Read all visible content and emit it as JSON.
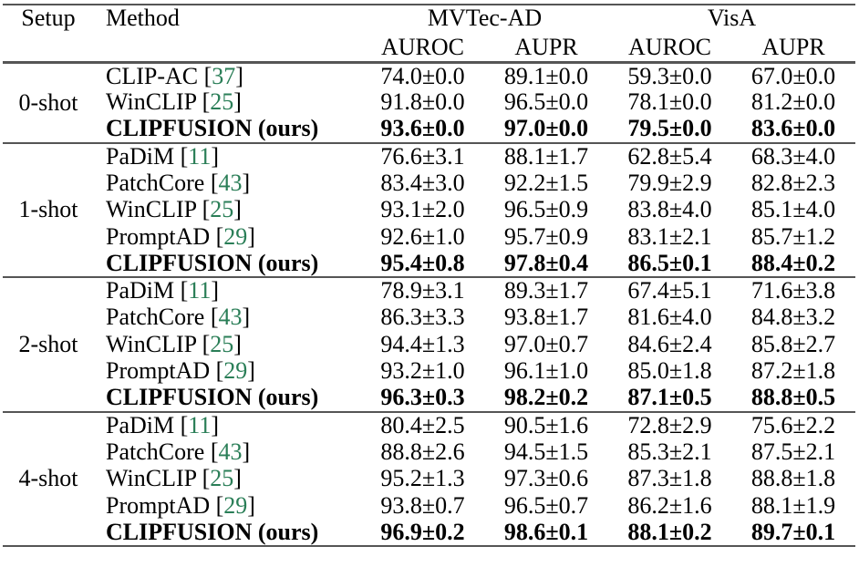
{
  "page": {
    "background": "#ffffff"
  },
  "table": {
    "headers": {
      "setup": "Setup",
      "method": "Method",
      "dataset_groups": [
        "MVTec-AD",
        "VisA"
      ],
      "metrics": [
        "AUROC",
        "AUPR",
        "AUROC",
        "AUPR"
      ]
    },
    "symbols": {
      "bracket_open": "[",
      "bracket_close": "]",
      "plus_minus": "±"
    },
    "colors": {
      "citation": "#2a7e57",
      "rule": "#555555",
      "text": "#000000"
    },
    "groups": [
      {
        "setup": "0-shot",
        "rows": [
          {
            "method": "CLIP-AC",
            "cite": "37",
            "bold": false,
            "values": [
              "74.0±0.0",
              "89.1±0.0",
              "59.3±0.0",
              "67.0±0.0"
            ]
          },
          {
            "method": "WinCLIP",
            "cite": "25",
            "bold": false,
            "values": [
              "91.8±0.0",
              "96.5±0.0",
              "78.1±0.0",
              "81.2±0.0"
            ]
          },
          {
            "method": "CLIPFUSION (ours)",
            "cite": null,
            "bold": true,
            "values": [
              "93.6±0.0",
              "97.0±0.0",
              "79.5±0.0",
              "83.6±0.0"
            ]
          }
        ]
      },
      {
        "setup": "1-shot",
        "rows": [
          {
            "method": "PaDiM",
            "cite": "11",
            "bold": false,
            "values": [
              "76.6±3.1",
              "88.1±1.7",
              "62.8±5.4",
              "68.3±4.0"
            ]
          },
          {
            "method": "PatchCore",
            "cite": "43",
            "bold": false,
            "values": [
              "83.4±3.0",
              "92.2±1.5",
              "79.9±2.9",
              "82.8±2.3"
            ]
          },
          {
            "method": "WinCLIP",
            "cite": "25",
            "bold": false,
            "values": [
              "93.1±2.0",
              "96.5±0.9",
              "83.8±4.0",
              "85.1±4.0"
            ]
          },
          {
            "method": "PromptAD",
            "cite": "29",
            "bold": false,
            "values": [
              "92.6±1.0",
              "95.7±0.9",
              "83.1±2.1",
              "85.7±1.2"
            ]
          },
          {
            "method": "CLIPFUSION (ours)",
            "cite": null,
            "bold": true,
            "values": [
              "95.4±0.8",
              "97.8±0.4",
              "86.5±0.1",
              "88.4±0.2"
            ]
          }
        ]
      },
      {
        "setup": "2-shot",
        "rows": [
          {
            "method": "PaDiM",
            "cite": "11",
            "bold": false,
            "values": [
              "78.9±3.1",
              "89.3±1.7",
              "67.4±5.1",
              "71.6±3.8"
            ]
          },
          {
            "method": "PatchCore",
            "cite": "43",
            "bold": false,
            "values": [
              "86.3±3.3",
              "93.8±1.7",
              "81.6±4.0",
              "84.8±3.2"
            ]
          },
          {
            "method": "WinCLIP",
            "cite": "25",
            "bold": false,
            "values": [
              "94.4±1.3",
              "97.0±0.7",
              "84.6±2.4",
              "85.8±2.7"
            ]
          },
          {
            "method": "PromptAD",
            "cite": "29",
            "bold": false,
            "values": [
              "93.2±1.0",
              "96.1±1.0",
              "85.0±1.8",
              "87.2±1.8"
            ]
          },
          {
            "method": "CLIPFUSION (ours)",
            "cite": null,
            "bold": true,
            "values": [
              "96.3±0.3",
              "98.2±0.2",
              "87.1±0.5",
              "88.8±0.5"
            ]
          }
        ]
      },
      {
        "setup": "4-shot",
        "rows": [
          {
            "method": "PaDiM",
            "cite": "11",
            "bold": false,
            "values": [
              "80.4±2.5",
              "90.5±1.6",
              "72.8±2.9",
              "75.6±2.2"
            ]
          },
          {
            "method": "PatchCore",
            "cite": "43",
            "bold": false,
            "values": [
              "88.8±2.6",
              "94.5±1.5",
              "85.3±2.1",
              "87.5±2.1"
            ]
          },
          {
            "method": "WinCLIP",
            "cite": "25",
            "bold": false,
            "values": [
              "95.2±1.3",
              "97.3±0.6",
              "87.3±1.8",
              "88.8±1.8"
            ]
          },
          {
            "method": "PromptAD",
            "cite": "29",
            "bold": false,
            "values": [
              "93.8±0.7",
              "96.5±0.7",
              "86.2±1.6",
              "88.1±1.9"
            ]
          },
          {
            "method": "CLIPFUSION (ours)",
            "cite": null,
            "bold": true,
            "values": [
              "96.9±0.2",
              "98.6±0.1",
              "88.1±0.2",
              "89.7±0.1"
            ]
          }
        ]
      }
    ]
  }
}
